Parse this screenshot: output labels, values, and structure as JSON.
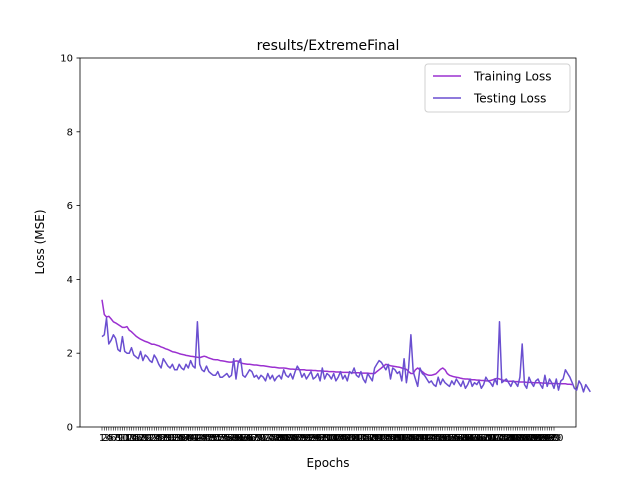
{
  "chart_data": {
    "type": "line",
    "title": "results/ExtremeFinal",
    "xlabel": "Epochs",
    "ylabel": "Loss (MSE)",
    "xlim": [
      1,
      200
    ],
    "ylim": [
      0,
      10
    ],
    "yticks": [
      0,
      2,
      4,
      6,
      8,
      10
    ],
    "xtick_count": 200,
    "grid": false,
    "legend_position": "top-right",
    "series": [
      {
        "name": "Training Loss",
        "color": "#9b30d0",
        "values": [
          3.45,
          3.05,
          2.98,
          3.0,
          2.93,
          2.85,
          2.82,
          2.78,
          2.74,
          2.7,
          2.7,
          2.72,
          2.62,
          2.58,
          2.52,
          2.46,
          2.42,
          2.38,
          2.35,
          2.32,
          2.3,
          2.27,
          2.24,
          2.24,
          2.22,
          2.2,
          2.17,
          2.15,
          2.12,
          2.1,
          2.07,
          2.04,
          2.03,
          2.01,
          1.99,
          1.97,
          1.96,
          1.94,
          1.93,
          1.92,
          1.91,
          1.9,
          1.89,
          1.88,
          1.9,
          1.92,
          1.9,
          1.87,
          1.85,
          1.83,
          1.82,
          1.82,
          1.8,
          1.79,
          1.78,
          1.77,
          1.76,
          1.76,
          1.77,
          1.79,
          1.78,
          1.74,
          1.72,
          1.71,
          1.7,
          1.7,
          1.69,
          1.68,
          1.68,
          1.67,
          1.66,
          1.66,
          1.65,
          1.64,
          1.63,
          1.62,
          1.62,
          1.61,
          1.6,
          1.6,
          1.6,
          1.59,
          1.58,
          1.57,
          1.57,
          1.56,
          1.56,
          1.55,
          1.55,
          1.55,
          1.54,
          1.54,
          1.54,
          1.53,
          1.53,
          1.52,
          1.52,
          1.52,
          1.51,
          1.51,
          1.5,
          1.5,
          1.5,
          1.49,
          1.49,
          1.49,
          1.48,
          1.48,
          1.48,
          1.48,
          1.47,
          1.47,
          1.47,
          1.47,
          1.46,
          1.46,
          1.46,
          1.46,
          1.45,
          1.45,
          1.45,
          1.5,
          1.55,
          1.6,
          1.65,
          1.7,
          1.68,
          1.66,
          1.65,
          1.64,
          1.63,
          1.62,
          1.6,
          1.58,
          1.56,
          1.5,
          1.45,
          1.45,
          1.55,
          1.6,
          1.55,
          1.5,
          1.45,
          1.42,
          1.4,
          1.4,
          1.42,
          1.44,
          1.5,
          1.56,
          1.6,
          1.55,
          1.45,
          1.4,
          1.38,
          1.36,
          1.35,
          1.34,
          1.32,
          1.31,
          1.3,
          1.3,
          1.29,
          1.28,
          1.28,
          1.27,
          1.27,
          1.26,
          1.26,
          1.25,
          1.25,
          1.26,
          1.28,
          1.3,
          1.32,
          1.3,
          1.28,
          1.26,
          1.24,
          1.24,
          1.24,
          1.24,
          1.23,
          1.23,
          1.22,
          1.22,
          1.22,
          1.21,
          1.21,
          1.21,
          1.2,
          1.2,
          1.2,
          1.2,
          1.19,
          1.19,
          1.19,
          1.18,
          1.18,
          1.18,
          1.18,
          1.17,
          1.17,
          1.17,
          1.17,
          1.16,
          1.16,
          1.15
        ]
      },
      {
        "name": "Testing Loss",
        "color": "#6a4fd0",
        "values": [
          2.45,
          2.5,
          2.95,
          2.25,
          2.35,
          2.5,
          2.4,
          2.1,
          2.05,
          2.45,
          2.05,
          2.0,
          2.0,
          2.15,
          1.95,
          1.9,
          1.85,
          2.05,
          1.8,
          1.95,
          1.9,
          1.8,
          1.75,
          1.95,
          1.85,
          1.7,
          1.6,
          1.85,
          1.75,
          1.65,
          1.6,
          1.7,
          1.55,
          1.55,
          1.7,
          1.6,
          1.55,
          1.7,
          1.6,
          1.8,
          1.65,
          1.6,
          2.85,
          1.7,
          1.55,
          1.5,
          1.65,
          1.5,
          1.45,
          1.4,
          1.4,
          1.5,
          1.35,
          1.35,
          1.4,
          1.45,
          1.35,
          1.4,
          1.85,
          1.3,
          1.75,
          1.85,
          1.4,
          1.35,
          1.45,
          1.55,
          1.5,
          1.35,
          1.4,
          1.3,
          1.4,
          1.35,
          1.25,
          1.45,
          1.3,
          1.4,
          1.25,
          1.35,
          1.4,
          1.3,
          1.55,
          1.4,
          1.35,
          1.45,
          1.3,
          1.5,
          1.65,
          1.55,
          1.35,
          1.45,
          1.3,
          1.4,
          1.5,
          1.3,
          1.35,
          1.45,
          1.25,
          1.6,
          1.3,
          1.45,
          1.4,
          1.3,
          1.45,
          1.25,
          1.35,
          1.5,
          1.3,
          1.4,
          1.25,
          1.5,
          1.45,
          1.6,
          1.4,
          1.35,
          1.5,
          1.3,
          1.2,
          1.45,
          1.35,
          1.25,
          1.6,
          1.7,
          1.8,
          1.75,
          1.65,
          1.55,
          1.7,
          1.3,
          1.6,
          1.55,
          1.45,
          1.5,
          1.25,
          1.85,
          1.2,
          1.6,
          2.5,
          1.5,
          1.3,
          1.1,
          1.6,
          1.45,
          1.4,
          1.3,
          1.2,
          1.25,
          1.15,
          1.1,
          1.35,
          1.15,
          1.3,
          1.2,
          1.15,
          1.1,
          1.25,
          1.15,
          1.3,
          1.2,
          1.1,
          1.25,
          1.05,
          1.15,
          1.3,
          1.1,
          1.2,
          1.15,
          1.25,
          1.05,
          1.15,
          1.35,
          1.25,
          1.2,
          1.1,
          1.3,
          1.15,
          2.85,
          1.2,
          1.25,
          1.3,
          1.2,
          1.1,
          1.25,
          1.2,
          1.1,
          1.35,
          2.25,
          1.15,
          1.05,
          1.35,
          1.2,
          1.1,
          1.25,
          1.3,
          1.15,
          1.05,
          1.4,
          1.1,
          1.3,
          1.2,
          1.05,
          1.3,
          1.0,
          1.25,
          1.3,
          1.55,
          1.45,
          1.35,
          1.2,
          1.05,
          1.0,
          1.25,
          1.15,
          0.95,
          1.15,
          1.05,
          0.95
        ]
      }
    ]
  }
}
